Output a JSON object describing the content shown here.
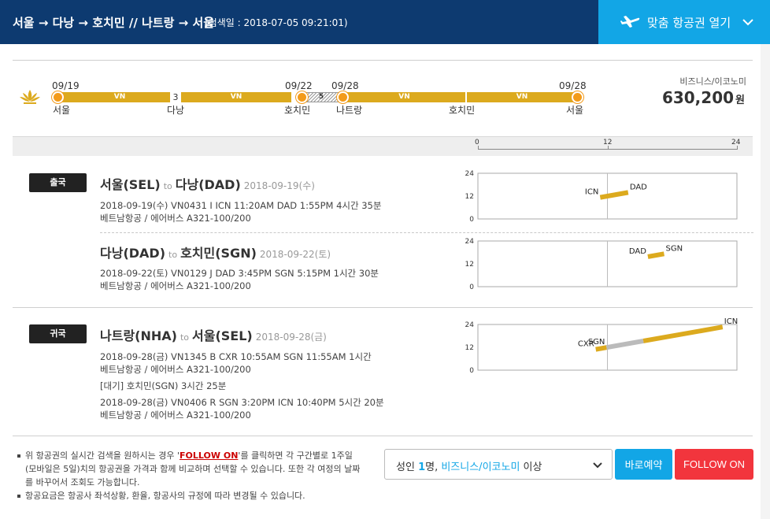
{
  "header": {
    "route": "서울 → 다낭 → 호치민 // 나트랑 → 서울",
    "search_date": "(검색일 : 2018-07-05 09:21:01)",
    "open_button": "맞춤 항공권 열기"
  },
  "timeline": {
    "dates": [
      "09/19",
      "09/22",
      "09/28",
      "09/28"
    ],
    "cities": [
      "서울",
      "다낭",
      "호치민",
      "나트랑",
      "호치민",
      "서울"
    ],
    "segments": [
      "VN",
      "VN",
      "VN",
      "VN"
    ],
    "stops": [
      "3",
      "5"
    ],
    "cabin": "비즈니스/이코노미",
    "price": "630,200",
    "price_unit": "원"
  },
  "scale": {
    "ticks": [
      "0",
      "12",
      "24"
    ]
  },
  "outbound": {
    "badge": "출국",
    "legs": [
      {
        "from": "서울(SEL)",
        "to_word": "to",
        "to": "다낭(DAD)",
        "date": "2018-09-19(수)",
        "detail": "2018-09-19(수)   VN0431    I    ICN 11:20AM DAD 1:55PM    4시간 35분",
        "aircraft": "베트남항공 / 에어버스 A321-100/200"
      },
      {
        "from": "다낭(DAD)",
        "to_word": "to",
        "to": "호치민(SGN)",
        "date": "2018-09-22(토)",
        "detail": "2018-09-22(토)   VN0129    J    DAD 3:45PM SGN 5:15PM    1시간 30분",
        "aircraft": "베트남항공 / 에어버스 A321-100/200"
      }
    ]
  },
  "inbound": {
    "badge": "귀국",
    "from": "나트랑(NHA)",
    "to_word": "to",
    "to": "서울(SEL)",
    "date": "2018-09-28(금)",
    "leg1_detail": "2018-09-28(금)   VN1345    B    CXR 10:55AM SGN 11:55AM    1시간",
    "leg1_aircraft": "베트남항공 / 에어버스 A321-100/200",
    "wait": "[대기] 호치민(SGN)    3시간 25분",
    "leg2_detail": "2018-09-28(금)   VN0406    R    SGN 3:20PM ICN 10:40PM    5시간 20분",
    "leg2_aircraft": "베트남항공 / 에어버스 A321-100/200"
  },
  "charts": [
    {
      "ymax": "24",
      "ymid": "12",
      "ymin": "0",
      "labels": [
        "ICN",
        "DAD"
      ],
      "flights": [
        {
          "dep": 11.33,
          "arr": 13.92
        }
      ]
    },
    {
      "ymax": "24",
      "ymid": "12",
      "ymin": "0",
      "labels": [
        "DAD",
        "SGN"
      ],
      "flights": [
        {
          "dep": 15.75,
          "arr": 17.25
        }
      ]
    },
    {
      "ymax": "24",
      "ymid": "12",
      "ymin": "0",
      "labels": [
        "CXR",
        "SGN",
        "ICN"
      ],
      "flights": [
        {
          "dep": 10.92,
          "arr": 11.92
        },
        {
          "dep": 15.33,
          "arr": 22.67
        }
      ]
    }
  ],
  "footer": {
    "note1_a": "위 항공권의 실시간 검색을 원하시는 경우 '",
    "note1_link": "FOLLOW ON",
    "note1_b": "'를 클릭하면 각 구간별로 1주일(모바일은 5일)치의 항공권을 가격과 함께 비교하며 선택할 수 있습니다. 또한 각 여정의 날짜를 바꾸어서 조회도 가능합니다.",
    "note2": "항공요금은 항공사 좌석상황, 환율, 항공사의 규정에 따라 변경될 수 있습니다.",
    "pax_a": "성인 ",
    "pax_n": "1",
    "pax_b": "명, ",
    "pax_cabin": "비즈니스/이코노미",
    "pax_c": " 이상",
    "book_button": "바로예약",
    "follow_button": "FOLLOW ON"
  },
  "colors": {
    "navy": "#0d3a70",
    "sky": "#12a6e6",
    "gold": "#dcaa1e",
    "red": "#f2353d",
    "dot": "#f39b1a"
  }
}
